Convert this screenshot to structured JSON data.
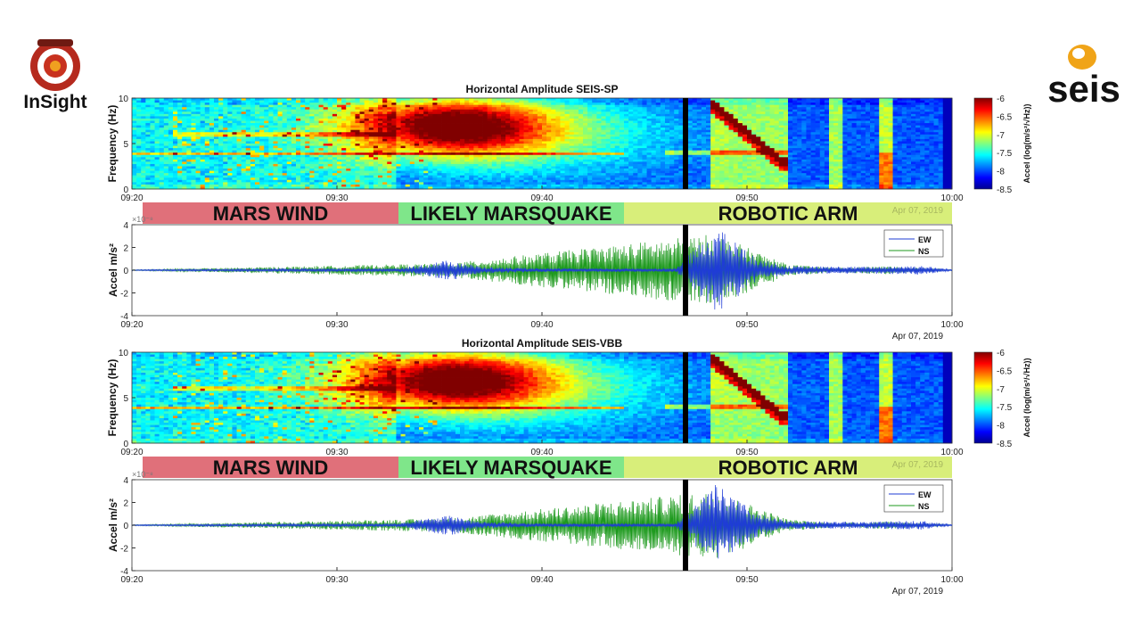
{
  "logos": {
    "insight": "InSight",
    "seis": "seis"
  },
  "colorbar_colors": [
    "#00008f",
    "#0000ff",
    "#0080ff",
    "#00ffff",
    "#80ff80",
    "#ffff00",
    "#ff8000",
    "#ff0000",
    "#800000"
  ],
  "series_colors": {
    "EW": "#1f3cd6",
    "NS": "#1e9a1e"
  },
  "marker_time": "09:47",
  "chart_data": [
    {
      "type": "heatmap",
      "title": "Horizontal Amplitude SEIS-SP",
      "ylabel": "Frequency (Hz)",
      "xlabel": "",
      "x_ticks": [
        "09:20",
        "09:30",
        "09:40",
        "09:50",
        "10:00"
      ],
      "y_ticks": [
        "0",
        "5",
        "10"
      ],
      "xlim": [
        "09:20",
        "10:00"
      ],
      "ylim": [
        0,
        10
      ],
      "colorbar": {
        "label": "Accel (log(m/s²/√Hz))",
        "ticks": [
          "-6",
          "-6.5",
          "-7",
          "-7.5",
          "-8",
          "-8.5"
        ],
        "range": [
          -8.5,
          -6
        ]
      },
      "date_label": "Apr 07, 2019",
      "event_bands": [
        {
          "label": "MARS WIND",
          "start": "09:20",
          "end": "09:33",
          "color": "#e0707a"
        },
        {
          "label": "LIKELY MARSQUAKE",
          "start": "09:33",
          "end": "09:44",
          "color": "#7fe68a"
        },
        {
          "label": "ROBOTIC ARM",
          "start": "09:44",
          "end": "10:00",
          "color": "#d8ee7a"
        }
      ]
    },
    {
      "type": "line",
      "title": "",
      "ylabel": "Accel m/s²",
      "y_scale_note": "×10⁻⁸",
      "x_ticks": [
        "09:20",
        "09:30",
        "09:40",
        "09:50",
        "10:00"
      ],
      "y_ticks": [
        "4",
        "2",
        "0",
        "-2",
        "-4"
      ],
      "xlim": [
        "09:20",
        "10:00"
      ],
      "ylim": [
        -4,
        4
      ],
      "date_label": "Apr 07, 2019",
      "legend": {
        "placement": "top-right",
        "entries": [
          "EW",
          "NS"
        ]
      },
      "series": [
        {
          "name": "EW",
          "envelope": [
            [
              0,
              0.05
            ],
            [
              7,
              0.12
            ],
            [
              13,
              0.15
            ],
            [
              15.5,
              0.9
            ],
            [
              17,
              0.3
            ],
            [
              20,
              0.15
            ],
            [
              26.5,
              0.15
            ],
            [
              28.5,
              3.8
            ],
            [
              30.5,
              1.0
            ],
            [
              32,
              0.35
            ],
            [
              36,
              0.3
            ],
            [
              38.5,
              0.4
            ],
            [
              40,
              0.05
            ]
          ]
        },
        {
          "name": "NS",
          "envelope": [
            [
              0,
              0.04
            ],
            [
              15.5,
              0.6
            ],
            [
              28.5,
              3.2
            ],
            [
              30.5,
              1.6
            ],
            [
              32,
              0.5
            ],
            [
              34.3,
              0.2
            ],
            [
              36.8,
              0.35
            ],
            [
              40,
              0.04
            ]
          ]
        }
      ]
    },
    {
      "type": "heatmap",
      "title": "Horizontal Amplitude SEIS-VBB",
      "ylabel": "Frequency (Hz)",
      "xlabel": "",
      "x_ticks": [
        "09:20",
        "09:30",
        "09:40",
        "09:50",
        "10:00"
      ],
      "y_ticks": [
        "0",
        "5",
        "10"
      ],
      "xlim": [
        "09:20",
        "10:00"
      ],
      "ylim": [
        0,
        10
      ],
      "colorbar": {
        "label": "Accel (log(m/s²/√Hz))",
        "ticks": [
          "-6",
          "-6.5",
          "-7",
          "-7.5",
          "-8",
          "-8.5"
        ],
        "range": [
          -8.5,
          -6
        ]
      },
      "date_label": "Apr 07, 2019",
      "event_bands": [
        {
          "label": "MARS WIND",
          "start": "09:20",
          "end": "09:33",
          "color": "#e0707a"
        },
        {
          "label": "LIKELY MARSQUAKE",
          "start": "09:33",
          "end": "09:44",
          "color": "#7fe68a"
        },
        {
          "label": "ROBOTIC ARM",
          "start": "09:44",
          "end": "10:00",
          "color": "#d8ee7a"
        }
      ]
    },
    {
      "type": "line",
      "title": "",
      "ylabel": "Accel m/s²",
      "y_scale_note": "×10⁻⁸",
      "x_ticks": [
        "09:20",
        "09:30",
        "09:40",
        "09:50",
        "10:00"
      ],
      "y_ticks": [
        "4",
        "2",
        "0",
        "-2",
        "-4"
      ],
      "xlim": [
        "09:20",
        "10:00"
      ],
      "ylim": [
        -4,
        4
      ],
      "date_label": "Apr 07, 2019",
      "legend": {
        "placement": "top-right",
        "entries": [
          "EW",
          "NS"
        ]
      },
      "series": [
        {
          "name": "EW",
          "envelope": [
            [
              0,
              0.05
            ],
            [
              7,
              0.12
            ],
            [
              13,
              0.15
            ],
            [
              15.5,
              0.9
            ],
            [
              17,
              0.3
            ],
            [
              20,
              0.15
            ],
            [
              26.5,
              0.15
            ],
            [
              28.5,
              3.6
            ],
            [
              30.5,
              1.0
            ],
            [
              32,
              0.35
            ],
            [
              36,
              0.3
            ],
            [
              38.5,
              0.4
            ],
            [
              40,
              0.05
            ]
          ]
        },
        {
          "name": "NS",
          "envelope": [
            [
              0,
              0.04
            ],
            [
              15.5,
              0.6
            ],
            [
              28.5,
              3.0
            ],
            [
              30.5,
              1.6
            ],
            [
              32,
              0.5
            ],
            [
              34.3,
              0.2
            ],
            [
              36.8,
              0.35
            ],
            [
              40,
              0.04
            ]
          ]
        }
      ]
    }
  ]
}
